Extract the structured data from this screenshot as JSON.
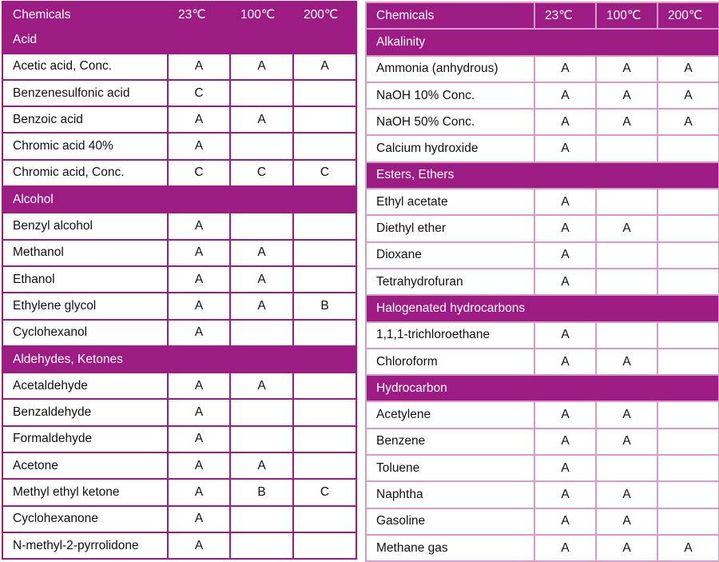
{
  "header": {
    "chemicals": "Chemicals",
    "t23": "23℃",
    "t100": "100℃",
    "t200": "200℃"
  },
  "left": [
    {
      "section": "Acid",
      "rows": [
        [
          "Acetic acid, Conc.",
          "A",
          "A",
          "A"
        ],
        [
          "Benzenesulfonic acid",
          "C",
          "",
          ""
        ],
        [
          "Benzoic acid",
          "A",
          "A",
          ""
        ],
        [
          "Chromic acid 40%",
          "A",
          "",
          ""
        ],
        [
          "Chromic acid, Conc.",
          "C",
          "C",
          "C"
        ]
      ]
    },
    {
      "section": "Alcohol",
      "rows": [
        [
          "Benzyl alcohol",
          "A",
          "",
          ""
        ],
        [
          "Methanol",
          "A",
          "A",
          ""
        ],
        [
          "Ethanol",
          "A",
          "A",
          ""
        ],
        [
          "Ethylene glycol",
          "A",
          "A",
          "B"
        ],
        [
          "Cyclohexanol",
          "A",
          "",
          ""
        ]
      ]
    },
    {
      "section": "Aldehydes, Ketones",
      "rows": [
        [
          "Acetaldehyde",
          "A",
          "A",
          ""
        ],
        [
          "Benzaldehyde",
          "A",
          "",
          ""
        ],
        [
          "Formaldehyde",
          "A",
          "",
          ""
        ],
        [
          "Acetone",
          "A",
          "A",
          ""
        ],
        [
          "Methyl ethyl ketone",
          "A",
          "B",
          "C"
        ],
        [
          "Cyclohexanone",
          "A",
          "",
          ""
        ],
        [
          "N-methyl-2-pyrrolidone",
          "A",
          "",
          ""
        ]
      ]
    }
  ],
  "right": [
    {
      "section": "Alkalinity",
      "rows": [
        [
          "Ammonia (anhydrous)",
          "A",
          "A",
          "A"
        ],
        [
          "NaOH 10% Conc.",
          "A",
          "A",
          "A"
        ],
        [
          "NaOH 50% Conc.",
          "A",
          "A",
          "A"
        ],
        [
          "Calcium hydroxide",
          "A",
          "",
          ""
        ]
      ]
    },
    {
      "section": "Esters, Ethers",
      "rows": [
        [
          "Ethyl acetate",
          "A",
          "",
          ""
        ],
        [
          "Diethyl ether",
          "A",
          "A",
          ""
        ],
        [
          "Dioxane",
          "A",
          "",
          ""
        ],
        [
          "Tetrahydrofuran",
          "A",
          "",
          ""
        ]
      ]
    },
    {
      "section": "Halogenated hydrocarbons",
      "rows": [
        [
          "1,1,1-trichloroethane",
          "A",
          "",
          ""
        ],
        [
          "Chloroform",
          "A",
          "A",
          ""
        ]
      ]
    },
    {
      "section": "Hydrocarbon",
      "rows": [
        [
          "Acetylene",
          "A",
          "A",
          ""
        ],
        [
          "Benzene",
          "A",
          "A",
          ""
        ],
        [
          "Toluene",
          "A",
          "",
          ""
        ],
        [
          "Naphtha",
          "A",
          "A",
          ""
        ],
        [
          "Gasoline",
          "A",
          "A",
          ""
        ],
        [
          "Methane gas",
          "A",
          "A",
          "A"
        ]
      ]
    }
  ]
}
